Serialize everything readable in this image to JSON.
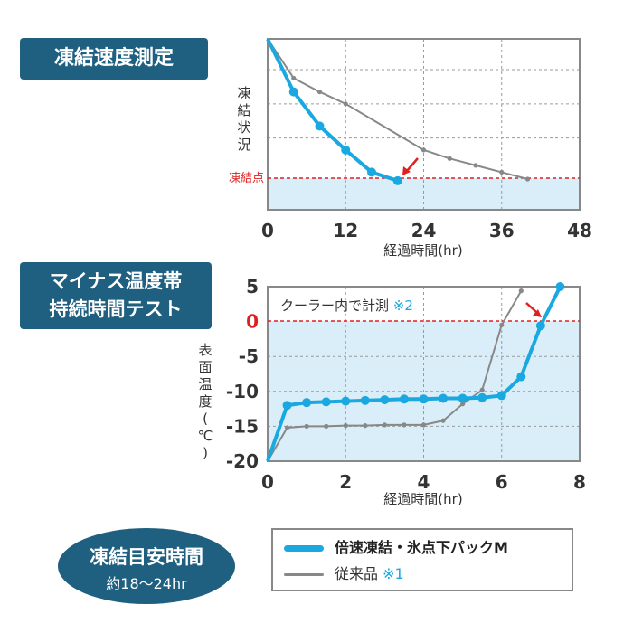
{
  "badges": {
    "freeze_speed": "凍結速度測定",
    "minus_line1": "マイナス温度帯",
    "minus_line2": "持続時間テスト"
  },
  "target": {
    "title": "凍結目安時間",
    "value": "約18〜24hr"
  },
  "legend": {
    "product": "倍速凍結・氷点下パックM",
    "conventional": "従来品",
    "conventional_note": "※1"
  },
  "colors": {
    "product": "#1aa8e0",
    "conventional": "#888888",
    "freezing": "#e02020",
    "shade": "#d9eef9",
    "badge": "#1f5f80"
  },
  "chart_data": [
    {
      "type": "line",
      "xlabel": "経過時間(hr)",
      "ylabel": "凍結状況",
      "ref_line_label": "凍結点",
      "xlim": [
        0,
        48
      ],
      "xticks": [
        "0",
        "12",
        "24",
        "36",
        "48"
      ],
      "grid": true,
      "series": [
        {
          "name": "倍速凍結・氷点下パックM",
          "x": [
            0,
            4,
            8,
            12,
            16,
            20
          ],
          "y": [
            1.0,
            0.69,
            0.49,
            0.35,
            0.22,
            0.17
          ]
        },
        {
          "name": "従来品",
          "x": [
            0,
            4,
            8,
            12,
            24,
            28,
            32,
            36,
            40
          ],
          "y": [
            1.0,
            0.77,
            0.69,
            0.62,
            0.35,
            0.3,
            0.26,
            0.22,
            0.18
          ]
        }
      ],
      "ref_line_y": 0.18,
      "annotation": "arrow pointing to the end of the product series at the freezing point"
    },
    {
      "type": "line",
      "xlabel": "経過時間(hr)",
      "ylabel": "表面温度(℃)",
      "note": "クーラー内で計測",
      "note_mark": "※2",
      "xlim": [
        0,
        8
      ],
      "ylim": [
        -20,
        5
      ],
      "xticks": [
        "0",
        "2",
        "4",
        "6",
        "8"
      ],
      "yticks": [
        "5",
        "0",
        "-5",
        "-10",
        "-15",
        "-20"
      ],
      "grid": true,
      "ref_line_y": 0,
      "series": [
        {
          "name": "倍速凍結・氷点下パックM",
          "x": [
            0,
            0.5,
            1,
            1.5,
            2,
            2.5,
            3,
            3.5,
            4,
            4.5,
            5,
            5.5,
            6,
            6.5,
            7,
            7.5
          ],
          "y": [
            -20,
            -12.0,
            -11.6,
            -11.5,
            -11.4,
            -11.3,
            -11.2,
            -11.1,
            -11.1,
            -11.0,
            -11.0,
            -10.9,
            -10.6,
            -7.9,
            -0.6,
            5.0
          ]
        },
        {
          "name": "従来品",
          "x": [
            0,
            0.5,
            1,
            1.5,
            2,
            2.5,
            3,
            3.5,
            4,
            4.5,
            5,
            5.5,
            6,
            6.5
          ],
          "y": [
            -20,
            -15.2,
            -15.0,
            -15.0,
            -14.9,
            -14.9,
            -14.8,
            -14.8,
            -14.8,
            -14.2,
            -11.8,
            -9.8,
            -0.5,
            4.4
          ]
        }
      ],
      "annotation": "arrow pointing to the product series crossing 0℃"
    }
  ]
}
